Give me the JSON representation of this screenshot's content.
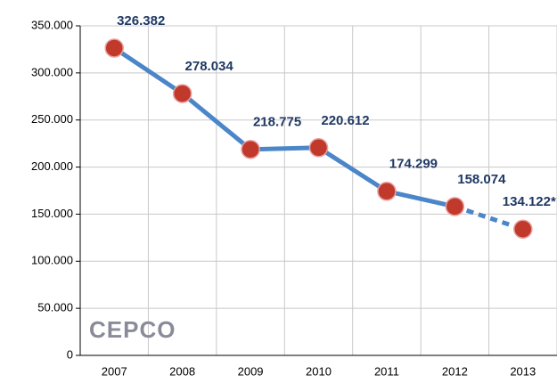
{
  "chart_data": {
    "type": "line",
    "categories": [
      "2007",
      "2008",
      "2009",
      "2010",
      "2011",
      "2012",
      "2013"
    ],
    "series": [
      {
        "color": "#4a86c8",
        "marker_color": "#c0392b",
        "values": [
          326382,
          278034,
          218775,
          220612,
          174299,
          158074,
          134122
        ],
        "value_labels": [
          "326.382",
          "278.034",
          "218.775",
          "220.612",
          "174.299",
          "158.074",
          "134.122*"
        ]
      }
    ],
    "last_segment_dashed": true,
    "ylim": [
      0,
      350000
    ],
    "yticks": [
      0,
      {
        "value": 50000,
        "label": "50.000"
      },
      {
        "value": 100000,
        "label": "100.000"
      },
      {
        "value": 150000,
        "label": "150.000"
      },
      {
        "value": 200000,
        "label": "200.000"
      },
      {
        "value": 250000,
        "label": "250.000"
      },
      {
        "value": 300000,
        "label": "300.000"
      },
      {
        "value": 350000,
        "label": "350.000"
      }
    ],
    "grid": true,
    "watermark": "CEPCO"
  }
}
